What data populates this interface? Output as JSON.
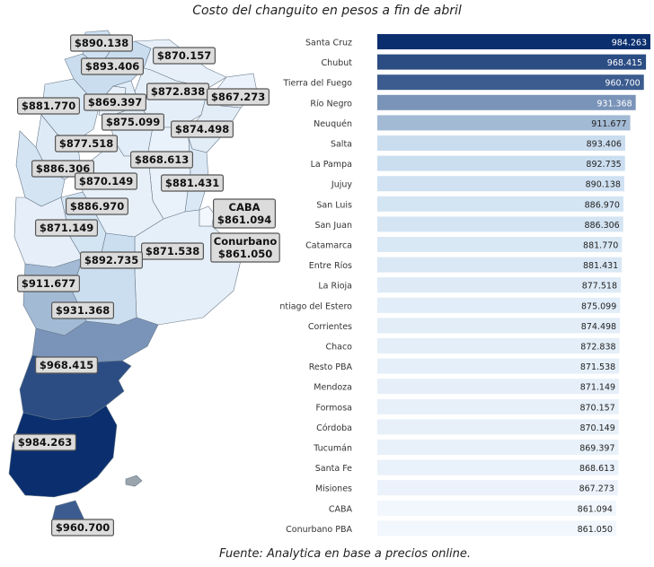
{
  "title": "Costo del changuito en pesos a fin de abril",
  "source": "Fuente: Analytica en base a precios online.",
  "chart_data": [
    {
      "type": "bar",
      "orientation": "horizontal",
      "categories": [
        "Santa Cruz",
        "Chubut",
        "Tierra del Fuego",
        "Río Negro",
        "Neuquén",
        "Salta",
        "La Pampa",
        "Jujuy",
        "San Luis",
        "San Juan",
        "Catamarca",
        "Entre Ríos",
        "La Rioja",
        "Santiago del Estero",
        "Corrientes",
        "Chaco",
        "Resto PBA",
        "Mendoza",
        "Formosa",
        "Córdoba",
        "Tucumán",
        "Santa Fe",
        "Misiones",
        "CABA",
        "Conurbano PBA"
      ],
      "values": [
        984263,
        968415,
        960700,
        931368,
        911677,
        893406,
        892735,
        890138,
        886970,
        886306,
        881770,
        881431,
        877518,
        875099,
        874498,
        872838,
        871538,
        871149,
        870157,
        870149,
        869397,
        868613,
        867273,
        861094,
        861050
      ],
      "value_labels": [
        "984.263",
        "968.415",
        "960.700",
        "931.368",
        "911.677",
        "893.406",
        "892.735",
        "890.138",
        "886.970",
        "886.306",
        "881.770",
        "881.431",
        "877.518",
        "875.099",
        "874.498",
        "872.838",
        "871.538",
        "871.149",
        "870.157",
        "870.149",
        "869.397",
        "868.613",
        "867.273",
        "861.094",
        "861.050"
      ],
      "color_scale": {
        "low": "#f2f7fd",
        "mid": "#cde0f1",
        "high": "#0b2f6e"
      },
      "grid": false
    },
    {
      "type": "choropleth",
      "region": "Argentina",
      "labels": [
        {
          "id": "jujuy",
          "text": "$890.138"
        },
        {
          "id": "salta",
          "text": "$893.406"
        },
        {
          "id": "formosa",
          "text": "$870.157"
        },
        {
          "id": "chaco",
          "text": "$872.838"
        },
        {
          "id": "misiones",
          "text": "$867.273"
        },
        {
          "id": "catamarca",
          "text": "$881.770"
        },
        {
          "id": "tucuman",
          "text": "$869.397"
        },
        {
          "id": "santiago",
          "text": "$875.099"
        },
        {
          "id": "corrientes",
          "text": "$874.498"
        },
        {
          "id": "larioja",
          "text": "$877.518"
        },
        {
          "id": "santafe",
          "text": "$868.613"
        },
        {
          "id": "sanjuan",
          "text": "$886.306"
        },
        {
          "id": "cordoba",
          "text": "$870.149"
        },
        {
          "id": "entrerios",
          "text": "$881.431"
        },
        {
          "id": "sanluis",
          "text": "$886.970"
        },
        {
          "id": "caba",
          "text": "CABA\n$861.094"
        },
        {
          "id": "mendoza",
          "text": "$871.149"
        },
        {
          "id": "conurbano",
          "text": "Conurbano\n$861.050"
        },
        {
          "id": "restopba",
          "text": "$871.538"
        },
        {
          "id": "lapampa",
          "text": "$892.735"
        },
        {
          "id": "neuquen",
          "text": "$911.677"
        },
        {
          "id": "rionegro",
          "text": "$931.368"
        },
        {
          "id": "chubut",
          "text": "$968.415"
        },
        {
          "id": "santacruz",
          "text": "$984.263"
        },
        {
          "id": "tdf",
          "text": "$960.700"
        }
      ]
    }
  ]
}
